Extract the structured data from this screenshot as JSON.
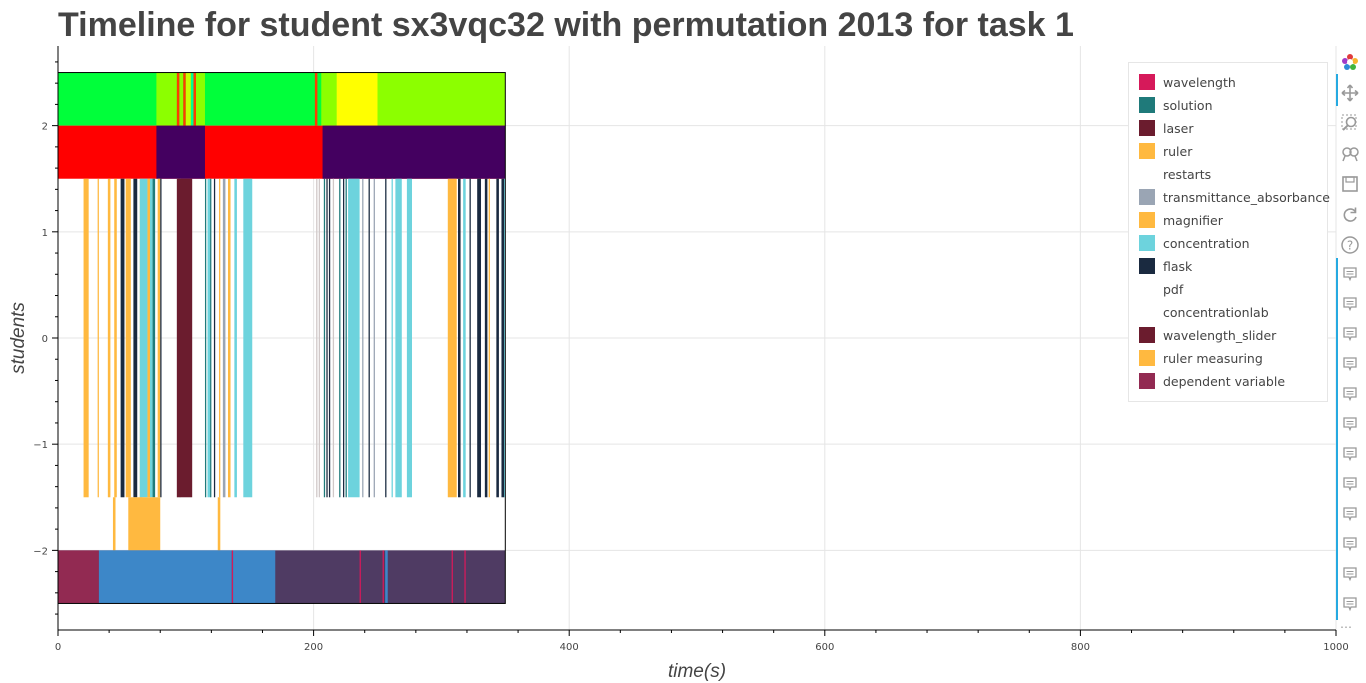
{
  "title": "Timeline for student sx3vqc32 with permutation 2013 for task 1",
  "chart_data": {
    "type": "timeline",
    "title": "Timeline for student sx3vqc32 with permutation 2013 for task 1",
    "xlabel": "time(s)",
    "ylabel": "students",
    "xlim": [
      0,
      1000
    ],
    "ylim": [
      -2.75,
      2.75
    ],
    "grid": true,
    "legend_position": "top-right",
    "x_ticks": [
      0,
      200,
      400,
      600,
      800,
      1000
    ],
    "x_tick_labels": [
      "0",
      "200",
      "400",
      "600",
      "800",
      "1000"
    ],
    "y_ticks": [
      -2,
      -1,
      0,
      1,
      2
    ],
    "y_tick_labels": [
      "−2",
      "−1",
      "0",
      "1",
      "2"
    ],
    "categories": [
      {
        "name": "wavelength",
        "color": "#d6195a"
      },
      {
        "name": "solution",
        "color": "#1f7a7a"
      },
      {
        "name": "laser",
        "color": "#6b1c2e"
      },
      {
        "name": "ruler",
        "color": "#ffb940"
      },
      {
        "name": "restarts",
        "color": "#ffffff"
      },
      {
        "name": "transmittance_absorbance",
        "color": "#9aa5b4"
      },
      {
        "name": "magnifier",
        "color": "#ffb940"
      },
      {
        "name": "concentration",
        "color": "#6dd3dd"
      },
      {
        "name": "flask",
        "color": "#1a2a40"
      },
      {
        "name": "pdf",
        "color": "#ffffff"
      },
      {
        "name": "concentrationlab",
        "color": "#ffffff"
      },
      {
        "name": "wavelength_slider",
        "color": "#6b1c2e"
      },
      {
        "name": "ruler measuring",
        "color": "#ffb940"
      },
      {
        "name": "dependent variable",
        "color": "#922a52"
      }
    ],
    "rows": [
      {
        "y0": 2.0,
        "y1": 2.5,
        "base": [
          0,
          350,
          "#00ff3a"
        ],
        "segments": [
          [
            77,
            93,
            "#8cff00"
          ],
          [
            93,
            95,
            "#ff3c00"
          ],
          [
            95,
            98,
            "#8cff00"
          ],
          [
            98,
            100,
            "#ff3c00"
          ],
          [
            100,
            104,
            "#c8ff00"
          ],
          [
            104,
            106,
            "#00ff90"
          ],
          [
            106,
            108,
            "#ff3c00"
          ],
          [
            108,
            115,
            "#8cff00"
          ],
          [
            201,
            203,
            "#ff3c00"
          ],
          [
            203,
            206,
            "#00ff3a"
          ],
          [
            206,
            218,
            "#8cff00"
          ],
          [
            218,
            250,
            "#ffff00"
          ],
          [
            250,
            350,
            "#8cff00"
          ]
        ]
      },
      {
        "y0": 1.5,
        "y1": 2.0,
        "base": [
          0,
          350,
          "#ff0000"
        ],
        "segments": [
          [
            77,
            115,
            "#440060"
          ],
          [
            207,
            350,
            "#440060"
          ]
        ]
      },
      {
        "y0": -1.5,
        "y1": 1.5,
        "base": null,
        "segments": [
          [
            20,
            24,
            "#ffb940"
          ],
          [
            31,
            32,
            "#ffb940"
          ],
          [
            39,
            41,
            "#ffb940"
          ],
          [
            44,
            46,
            "#ffb940"
          ],
          [
            49,
            52,
            "#1a2a40"
          ],
          [
            53,
            57,
            "#ffb940"
          ],
          [
            59,
            62,
            "#1a2a40"
          ],
          [
            64,
            66,
            "#ffb940"
          ],
          [
            64,
            70,
            "#6dd3dd"
          ],
          [
            70,
            72,
            "#ffb940"
          ],
          [
            72,
            74,
            "#6dd3dd"
          ],
          [
            74,
            76,
            "#1f7a7a"
          ],
          [
            78,
            80,
            "#ffb940"
          ],
          [
            80,
            81,
            "#1a2a40"
          ],
          [
            93,
            94,
            "#d0c8c8"
          ],
          [
            95,
            96,
            "#9aa5b4"
          ],
          [
            93,
            105,
            "#6b1c2e"
          ],
          [
            115,
            116,
            "#1f7a7a"
          ],
          [
            117,
            119,
            "#6dd3dd"
          ],
          [
            119,
            120,
            "#1f7a7a"
          ],
          [
            122,
            123,
            "#1a2a40"
          ],
          [
            126,
            127,
            "#ffb940"
          ],
          [
            129,
            131,
            "#9aa5b4"
          ],
          [
            133,
            135,
            "#ffb940"
          ],
          [
            138,
            140,
            "#6dd3dd"
          ],
          [
            145,
            152,
            "#6dd3dd"
          ],
          [
            202,
            203,
            "#d0c8c8"
          ],
          [
            204,
            205,
            "#d0c8c8"
          ],
          [
            208,
            209,
            "#1f7a7a"
          ],
          [
            210,
            211,
            "#1a2a40"
          ],
          [
            212,
            213,
            "#1a2a40"
          ],
          [
            215,
            216,
            "#d0c8c8"
          ],
          [
            220,
            221,
            "#1f7a7a"
          ],
          [
            223,
            224,
            "#1a2a40"
          ],
          [
            225,
            226,
            "#1f7a7a"
          ],
          [
            227,
            236,
            "#6dd3dd"
          ],
          [
            238,
            239,
            "#9aa5b4"
          ],
          [
            243,
            244,
            "#1a2a40"
          ],
          [
            247,
            248,
            "#9aa5b4"
          ],
          [
            256,
            257,
            "#1a2a40"
          ],
          [
            261,
            262,
            "#6dd3dd"
          ],
          [
            264,
            269,
            "#6dd3dd"
          ],
          [
            273,
            277,
            "#6dd3dd"
          ],
          [
            305,
            312,
            "#ffb940"
          ],
          [
            313,
            315,
            "#1a2a40"
          ],
          [
            317,
            319,
            "#6dd3dd"
          ],
          [
            322,
            323,
            "#1a2a40"
          ],
          [
            328,
            331,
            "#1a2a40"
          ],
          [
            334,
            336,
            "#1a2a40"
          ],
          [
            337,
            338,
            "#ffb940"
          ],
          [
            343,
            345,
            "#1a2a40"
          ],
          [
            347,
            349,
            "#1a2a40"
          ],
          [
            349,
            350,
            "#6dd3dd"
          ]
        ]
      },
      {
        "y0": -2.0,
        "y1": -1.5,
        "base": null,
        "segments": [
          [
            43,
            45,
            "#ffb940"
          ],
          [
            55,
            80,
            "#ffb940"
          ],
          [
            125,
            127,
            "#ffb940"
          ]
        ]
      },
      {
        "y0": -2.5,
        "y1": -2.0,
        "base": [
          0,
          350,
          "#4f3b63"
        ],
        "segments": [
          [
            0,
            32,
            "#922a52"
          ],
          [
            32,
            136,
            "#3d87c8"
          ],
          [
            136,
            137,
            "#d6195a"
          ],
          [
            137,
            170,
            "#3d87c8"
          ],
          [
            236,
            237,
            "#d6195a"
          ],
          [
            254,
            255,
            "#d6195a"
          ],
          [
            256,
            258,
            "#3d87c8"
          ],
          [
            308,
            309,
            "#d6195a"
          ],
          [
            318,
            319,
            "#d6195a"
          ]
        ]
      }
    ]
  },
  "toolbar": {
    "tools": [
      "bokeh-logo-icon",
      "pan-icon",
      "box-zoom-icon",
      "wheel-zoom-icon",
      "save-icon",
      "reset-icon",
      "help-icon"
    ],
    "hover_tool_count": 12,
    "more_label": "⋯"
  }
}
